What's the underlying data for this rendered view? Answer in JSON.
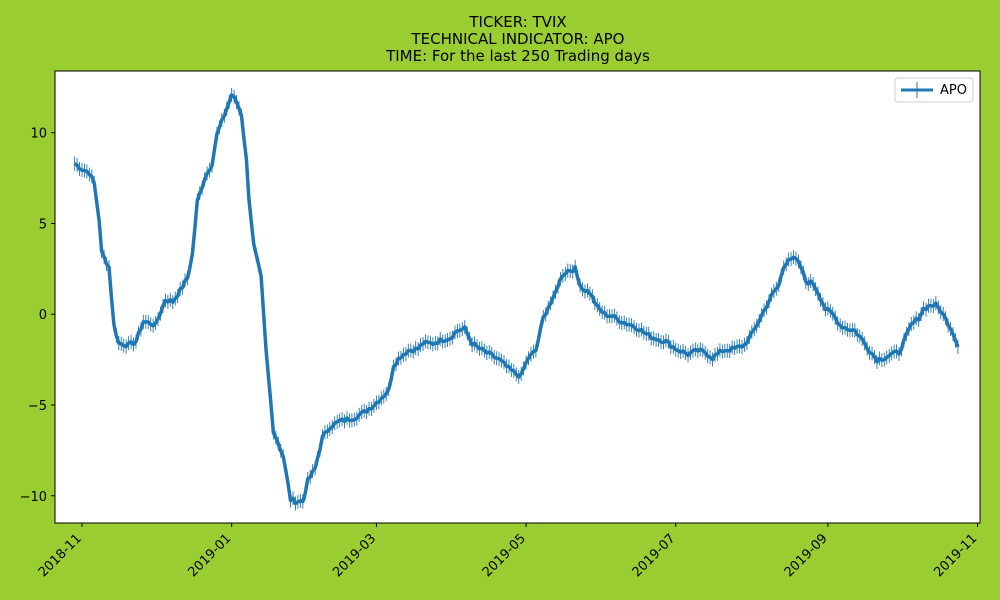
{
  "figure": {
    "background": "#9acd32",
    "title_lines": [
      "TICKER:  TVIX",
      "TECHNICAL INDICATOR:  APO",
      "TIME: For the last 250 Trading days"
    ]
  },
  "chart_data": {
    "type": "line",
    "title": "TICKER:  TVIX\nTECHNICAL INDICATOR:  APO\nTIME: For the last 250 Trading days",
    "xlabel": "",
    "ylabel": "",
    "x_axis_type": "date",
    "xlim": [
      "2018-10-21",
      "2019-11-02"
    ],
    "ylim": [
      -11.5,
      13.4
    ],
    "x_ticks": [
      "2018-11-01",
      "2019-01-01",
      "2019-03-01",
      "2019-05-01",
      "2019-07-01",
      "2019-09-01",
      "2019-11-01"
    ],
    "x_tick_labels": [
      "2018-11",
      "2019-01",
      "2019-03",
      "2019-05",
      "2019-07",
      "2019-09",
      "2019-11"
    ],
    "y_ticks": [
      -10,
      -5,
      0,
      5,
      10
    ],
    "y_tick_labels": [
      "−10",
      "−5",
      "0",
      "5",
      "10"
    ],
    "grid": false,
    "legend": {
      "position": "top-right"
    },
    "series": [
      {
        "name": "APO",
        "color": "#1f77b4",
        "marker": "vertical-line",
        "points": [
          [
            "2018-10-29",
            8.3
          ],
          [
            "2018-11-01",
            8.0
          ],
          [
            "2018-11-04",
            7.8
          ],
          [
            "2018-11-06",
            7.2
          ],
          [
            "2018-11-08",
            5.2
          ],
          [
            "2018-11-09",
            3.4
          ],
          [
            "2018-11-12",
            2.6
          ],
          [
            "2018-11-14",
            -0.6
          ],
          [
            "2018-11-16",
            -1.6
          ],
          [
            "2018-11-20",
            -1.7
          ],
          [
            "2018-11-23",
            -1.5
          ],
          [
            "2018-11-26",
            -0.4
          ],
          [
            "2018-11-29",
            -0.5
          ],
          [
            "2018-12-01",
            -0.6
          ],
          [
            "2018-12-05",
            0.8
          ],
          [
            "2018-12-08",
            0.7
          ],
          [
            "2018-12-11",
            1.3
          ],
          [
            "2018-12-14",
            2.0
          ],
          [
            "2018-12-16",
            3.3
          ],
          [
            "2018-12-18",
            6.2
          ],
          [
            "2018-12-21",
            7.5
          ],
          [
            "2018-12-24",
            8.3
          ],
          [
            "2018-12-26",
            9.9
          ],
          [
            "2018-12-28",
            10.6
          ],
          [
            "2018-12-31",
            11.7
          ],
          [
            "2019-01-01",
            12.1
          ],
          [
            "2019-01-03",
            11.7
          ],
          [
            "2019-01-05",
            11.0
          ],
          [
            "2019-01-07",
            8.5
          ],
          [
            "2019-01-08",
            6.5
          ],
          [
            "2019-01-10",
            3.8
          ],
          [
            "2019-01-13",
            2.0
          ],
          [
            "2019-01-15",
            -2.0
          ],
          [
            "2019-01-18",
            -6.4
          ],
          [
            "2019-01-22",
            -7.8
          ],
          [
            "2019-01-25",
            -10.2
          ],
          [
            "2019-01-27",
            -10.3
          ],
          [
            "2019-01-30",
            -10.3
          ],
          [
            "2019-02-01",
            -9.2
          ],
          [
            "2019-02-04",
            -8.5
          ],
          [
            "2019-02-07",
            -6.8
          ],
          [
            "2019-02-10",
            -6.2
          ],
          [
            "2019-02-14",
            -5.9
          ],
          [
            "2019-02-17",
            -5.8
          ],
          [
            "2019-02-20",
            -5.7
          ],
          [
            "2019-02-24",
            -5.4
          ],
          [
            "2019-02-28",
            -5.0
          ],
          [
            "2019-03-03",
            -4.6
          ],
          [
            "2019-03-06",
            -4.2
          ],
          [
            "2019-03-08",
            -2.8
          ],
          [
            "2019-03-11",
            -2.3
          ],
          [
            "2019-03-14",
            -2.0
          ],
          [
            "2019-03-18",
            -1.9
          ],
          [
            "2019-03-20",
            -1.6
          ],
          [
            "2019-03-24",
            -1.6
          ],
          [
            "2019-03-28",
            -1.4
          ],
          [
            "2019-03-31",
            -1.3
          ],
          [
            "2019-04-03",
            -0.9
          ],
          [
            "2019-04-06",
            -0.8
          ],
          [
            "2019-04-09",
            -1.6
          ],
          [
            "2019-04-12",
            -1.9
          ],
          [
            "2019-04-16",
            -2.2
          ],
          [
            "2019-04-20",
            -2.5
          ],
          [
            "2019-04-24",
            -3.0
          ],
          [
            "2019-04-27",
            -3.3
          ],
          [
            "2019-04-29",
            -3.4
          ],
          [
            "2019-04-30",
            -3.0
          ],
          [
            "2019-05-02",
            -2.4
          ],
          [
            "2019-05-05",
            -2.0
          ],
          [
            "2019-05-08",
            -0.2
          ],
          [
            "2019-05-10",
            0.4
          ],
          [
            "2019-05-12",
            0.8
          ],
          [
            "2019-05-14",
            1.6
          ],
          [
            "2019-05-16",
            2.2
          ],
          [
            "2019-05-18",
            2.4
          ],
          [
            "2019-05-21",
            2.5
          ],
          [
            "2019-05-22",
            2.0
          ],
          [
            "2019-05-24",
            1.4
          ],
          [
            "2019-05-27",
            1.2
          ],
          [
            "2019-05-30",
            0.4
          ],
          [
            "2019-06-02",
            0.0
          ],
          [
            "2019-06-05",
            -0.1
          ],
          [
            "2019-06-09",
            -0.4
          ],
          [
            "2019-06-13",
            -0.6
          ],
          [
            "2019-06-16",
            -0.8
          ],
          [
            "2019-06-19",
            -1.1
          ],
          [
            "2019-06-22",
            -1.3
          ],
          [
            "2019-06-27",
            -1.5
          ],
          [
            "2019-07-01",
            -1.9
          ],
          [
            "2019-07-06",
            -2.2
          ],
          [
            "2019-07-10",
            -2.0
          ],
          [
            "2019-07-13",
            -2.1
          ],
          [
            "2019-07-16",
            -2.4
          ],
          [
            "2019-07-20",
            -2.0
          ],
          [
            "2019-07-25",
            -1.9
          ],
          [
            "2019-07-29",
            -1.7
          ],
          [
            "2019-08-01",
            -1.1
          ],
          [
            "2019-08-03",
            -0.6
          ],
          [
            "2019-08-06",
            0.2
          ],
          [
            "2019-08-09",
            1.0
          ],
          [
            "2019-08-12",
            1.6
          ],
          [
            "2019-08-14",
            2.6
          ],
          [
            "2019-08-16",
            3.1
          ],
          [
            "2019-08-19",
            3.0
          ],
          [
            "2019-08-21",
            2.6
          ],
          [
            "2019-08-23",
            1.8
          ],
          [
            "2019-08-26",
            1.7
          ],
          [
            "2019-08-28",
            1.2
          ],
          [
            "2019-08-31",
            0.3
          ],
          [
            "2019-09-03",
            0.0
          ],
          [
            "2019-09-06",
            -0.6
          ],
          [
            "2019-09-09",
            -0.8
          ],
          [
            "2019-09-12",
            -0.9
          ],
          [
            "2019-09-15",
            -1.4
          ],
          [
            "2019-09-18",
            -2.0
          ],
          [
            "2019-09-21",
            -2.5
          ],
          [
            "2019-09-24",
            -2.4
          ],
          [
            "2019-09-27",
            -2.2
          ],
          [
            "2019-09-30",
            -2.1
          ],
          [
            "2019-10-03",
            -1.2
          ],
          [
            "2019-10-05",
            -0.6
          ],
          [
            "2019-10-08",
            -0.2
          ],
          [
            "2019-10-10",
            0.3
          ],
          [
            "2019-10-13",
            0.5
          ],
          [
            "2019-10-15",
            0.5
          ],
          [
            "2019-10-17",
            0.2
          ],
          [
            "2019-10-20",
            -0.5
          ],
          [
            "2019-10-22",
            -1.0
          ],
          [
            "2019-10-24",
            -1.8
          ]
        ]
      }
    ]
  }
}
